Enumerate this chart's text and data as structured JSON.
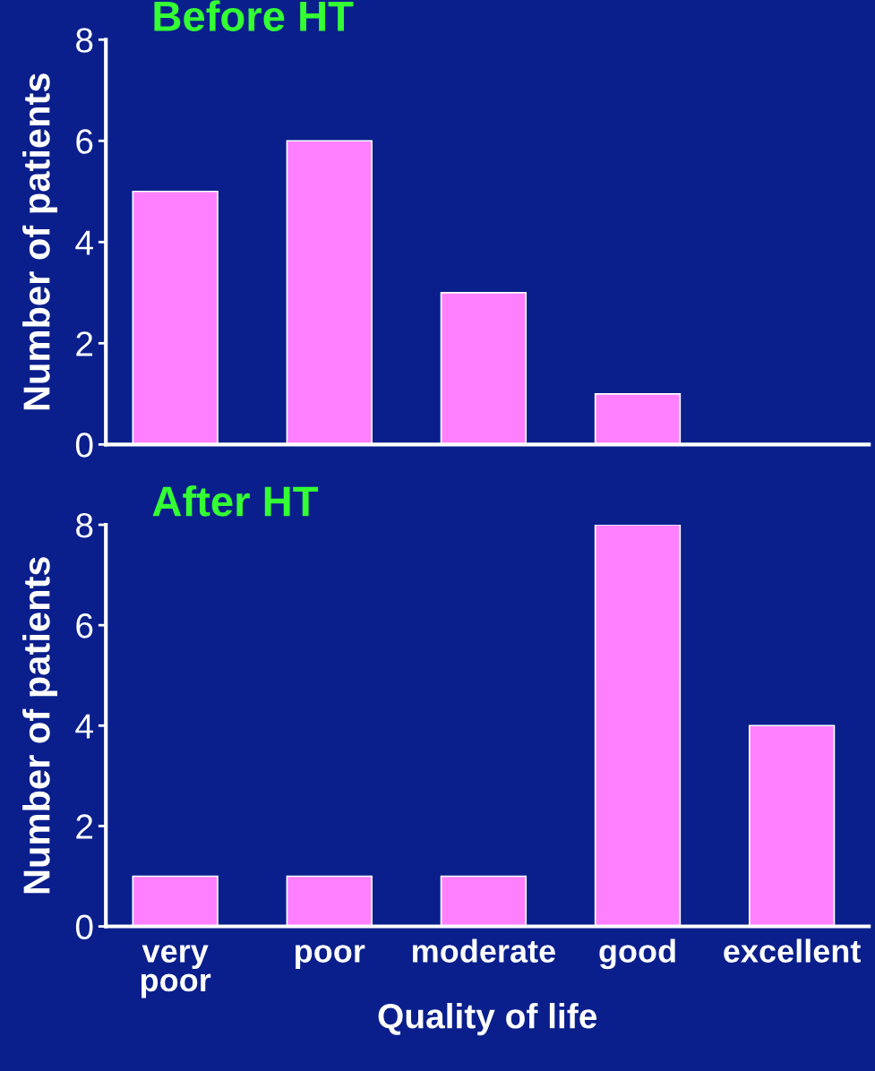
{
  "chart_data": [
    {
      "type": "bar",
      "title": "Before HT",
      "ylabel": "Number of patients",
      "categories": [
        null,
        null,
        null,
        null,
        null
      ],
      "values": [
        5,
        6,
        3,
        1,
        0
      ],
      "color": "#ff80ff",
      "ylim": [
        0,
        8
      ],
      "yticks": [
        0,
        2,
        4,
        6,
        8
      ],
      "tick_labels": "y",
      "grid": false,
      "legend": false
    },
    {
      "type": "bar",
      "title": "After HT",
      "ylabel": "Number of patients",
      "xlabel": "Quality of life",
      "categories": [
        "very\npoor",
        "poor",
        "moderate",
        "good",
        "excellent"
      ],
      "values": [
        1,
        1,
        1,
        8,
        4
      ],
      "color": "#ff80ff",
      "ylim": [
        0,
        8
      ],
      "yticks": [
        0,
        2,
        4,
        6,
        8
      ],
      "grid": false,
      "legend": false
    }
  ]
}
